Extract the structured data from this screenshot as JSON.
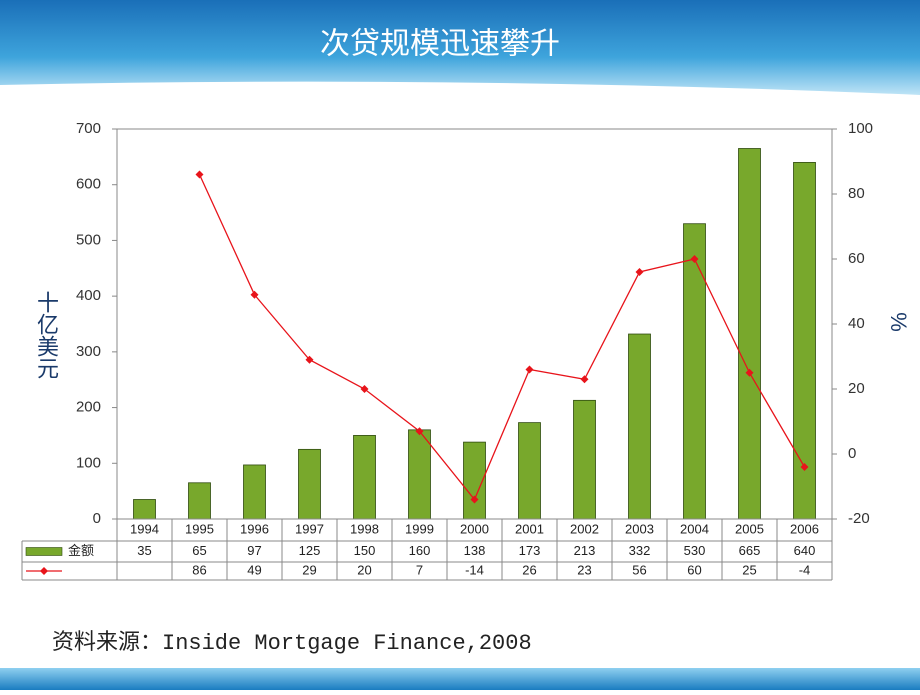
{
  "chart_data": {
    "type": "bar-line",
    "title": "次贷规模迅速攀升",
    "y_label": "十亿美元",
    "y2_label": "%",
    "source": "资料来源：Inside Mortgage Finance,2008",
    "categories": [
      "1994",
      "1995",
      "1996",
      "1997",
      "1998",
      "1999",
      "2000",
      "2001",
      "2002",
      "2003",
      "2004",
      "2005",
      "2006"
    ],
    "series": [
      {
        "name": "金额",
        "type": "bar",
        "color": "#78a82c",
        "values": [
          35,
          65,
          97,
          125,
          150,
          160,
          138,
          173,
          213,
          332,
          530,
          665,
          640
        ]
      },
      {
        "type": "line",
        "axis": "y2",
        "color": "#e8141b",
        "values": [
          null,
          86,
          49,
          29,
          20,
          7,
          -14,
          26,
          23,
          56,
          60,
          25,
          -4
        ]
      }
    ],
    "ylim": [
      0,
      700
    ],
    "yticks": [
      0,
      100,
      200,
      300,
      400,
      500,
      600,
      700
    ],
    "y2lim": [
      -20,
      100
    ],
    "y2ticks": [
      -20,
      0,
      20,
      40,
      60,
      80,
      100
    ]
  }
}
